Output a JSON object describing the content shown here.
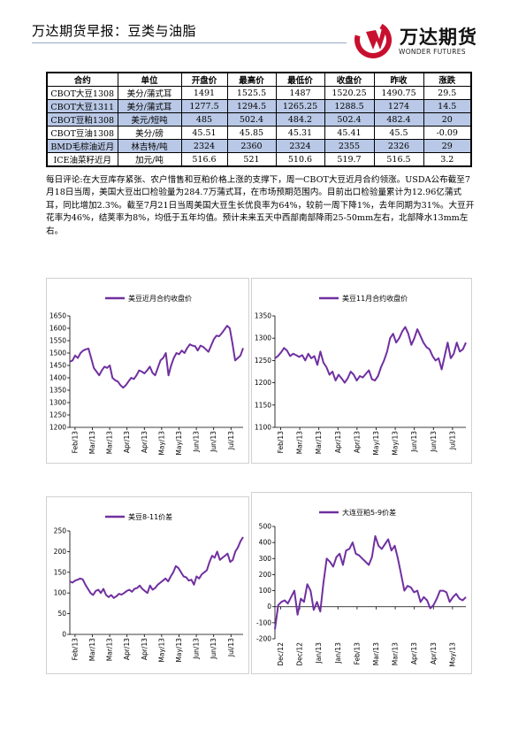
{
  "header": {
    "title": "万达期货早报：豆类与油脂",
    "logo_cn": "万达期货",
    "logo_en": "WONDER FUTURES"
  },
  "table": {
    "columns": [
      "合约",
      "单位",
      "开盘价",
      "最高价",
      "最低价",
      "收盘价",
      "昨收",
      "涨跌"
    ],
    "rows": [
      [
        "CBOT大豆1308",
        "美分/蒲式耳",
        "1491",
        "1525.5",
        "1487",
        "1520.25",
        "1490.75",
        "29.5"
      ],
      [
        "CBOT大豆1311",
        "美分/蒲式耳",
        "1277.5",
        "1294.5",
        "1265.25",
        "1288.5",
        "1274",
        "14.5"
      ],
      [
        "CBOT豆粕1308",
        "美元/短吨",
        "485",
        "502.4",
        "484.2",
        "502.4",
        "482.4",
        "20"
      ],
      [
        "CBOT豆油1308",
        "美分/磅",
        "45.51",
        "45.85",
        "45.31",
        "45.41",
        "45.5",
        "-0.09"
      ],
      [
        "BMD毛棕油近月",
        "林吉特/吨",
        "2324",
        "2360",
        "2324",
        "2355",
        "2326",
        "29"
      ],
      [
        "ICE油菜籽近月",
        "加元/吨",
        "516.6",
        "521",
        "510.6",
        "519.7",
        "516.5",
        "3.2"
      ]
    ],
    "highlight_rows": [
      1,
      2,
      4
    ]
  },
  "comment": "每日评论:在大豆库存紧张、农户惜售和豆粕价格上涨的支撑下，周一CBOT大豆近月合约领涨。USDA公布截至7月18日当周，美国大豆出口检验量为284.7万蒲式耳，在市场预期范围内。目前出口检验量累计为12.96亿蒲式耳，同比增加2.3%。截至7月21日当周美国大豆生长优良率为64%，较前一周下降1%，去年同期为31%。大豆开花率为46%，结荚率为8%，均低于五年均值。预计未来五天中西部南部降雨25-50mm左右，北部降水13mm左右。",
  "chart_data": [
    {
      "type": "line",
      "legend": "美豆近月合约收盘价",
      "color": "#7030a0",
      "ylim": [
        1200,
        1650
      ],
      "yticks": [
        1200,
        1250,
        1300,
        1350,
        1400,
        1450,
        1500,
        1550,
        1600,
        1650
      ],
      "xticks": [
        "Feb/13",
        "Mar/13",
        "Mar/13",
        "Apr/13",
        "Apr/13",
        "May/13",
        "May/13",
        "Jun/13",
        "Jun/13",
        "Jul/13"
      ],
      "values": [
        1465,
        1470,
        1490,
        1480,
        1500,
        1510,
        1515,
        1518,
        1480,
        1440,
        1425,
        1410,
        1430,
        1445,
        1440,
        1450,
        1400,
        1390,
        1385,
        1370,
        1360,
        1370,
        1385,
        1400,
        1395,
        1410,
        1430,
        1425,
        1418,
        1430,
        1445,
        1420,
        1410,
        1440,
        1470,
        1480,
        1500,
        1410,
        1450,
        1480,
        1500,
        1495,
        1510,
        1500,
        1520,
        1535,
        1530,
        1528,
        1510,
        1530,
        1525,
        1515,
        1505,
        1530,
        1555,
        1570,
        1568,
        1580,
        1595,
        1610,
        1600,
        1540,
        1470,
        1480,
        1490,
        1520
      ]
    },
    {
      "type": "line",
      "legend": "美豆11月合约收盘价",
      "color": "#7030a0",
      "ylim": [
        1100,
        1350
      ],
      "yticks": [
        1100,
        1150,
        1200,
        1250,
        1300,
        1350
      ],
      "xticks": [
        "Feb/13",
        "Mar/13",
        "Mar/13",
        "Apr/13",
        "Apr/13",
        "May/13",
        "May/13",
        "Jun/13",
        "Jun/13",
        "Jul/13"
      ],
      "values": [
        1255,
        1260,
        1268,
        1278,
        1272,
        1260,
        1265,
        1262,
        1258,
        1262,
        1250,
        1265,
        1255,
        1260,
        1240,
        1270,
        1245,
        1235,
        1218,
        1225,
        1205,
        1218,
        1210,
        1200,
        1210,
        1225,
        1218,
        1205,
        1215,
        1212,
        1220,
        1228,
        1208,
        1205,
        1215,
        1235,
        1250,
        1270,
        1300,
        1310,
        1290,
        1300,
        1315,
        1325,
        1310,
        1285,
        1300,
        1320,
        1305,
        1290,
        1280,
        1275,
        1260,
        1250,
        1255,
        1230,
        1260,
        1290,
        1255,
        1265,
        1290,
        1270,
        1275,
        1290
      ]
    },
    {
      "type": "line",
      "legend": "美豆8-11价差",
      "color": "#7030a0",
      "ylim": [
        0,
        250
      ],
      "yticks": [
        0,
        50,
        100,
        150,
        200,
        250
      ],
      "xticks": [
        "Feb/13",
        "Mar/13",
        "Mar/13",
        "Apr/13",
        "Apr/13",
        "May/13",
        "May/13",
        "Jun/13",
        "Jun/13",
        "Jul/13"
      ],
      "values": [
        128,
        125,
        130,
        132,
        135,
        133,
        120,
        110,
        100,
        95,
        105,
        108,
        100,
        110,
        95,
        90,
        95,
        88,
        92,
        98,
        96,
        100,
        105,
        108,
        103,
        110,
        112,
        118,
        110,
        105,
        100,
        118,
        108,
        112,
        120,
        125,
        130,
        135,
        128,
        140,
        150,
        165,
        160,
        150,
        140,
        138,
        130,
        132,
        120,
        140,
        135,
        145,
        150,
        155,
        175,
        190,
        185,
        200,
        180,
        185,
        190,
        195,
        175,
        180,
        200,
        210,
        225,
        235
      ]
    },
    {
      "type": "line",
      "legend": "大连豆粕5-9价差",
      "color": "#7030a0",
      "ylim": [
        -200,
        500
      ],
      "yticks": [
        -200,
        -100,
        0,
        100,
        200,
        300,
        400,
        500
      ],
      "xticks": [
        "Dec/12",
        "Dec/12",
        "Jan/13",
        "Jan/13",
        "Feb/13",
        "Mar/13",
        "Mar/13",
        "Apr/13",
        "Apr/13",
        "May/13"
      ],
      "values": [
        -140,
        10,
        30,
        40,
        20,
        60,
        100,
        -50,
        50,
        30,
        140,
        100,
        -20,
        30,
        -30,
        150,
        300,
        280,
        250,
        310,
        330,
        260,
        350,
        360,
        400,
        330,
        320,
        300,
        280,
        260,
        310,
        440,
        380,
        360,
        390,
        420,
        350,
        380,
        300,
        200,
        100,
        130,
        120,
        90,
        100,
        30,
        60,
        40,
        -10,
        10,
        50,
        100,
        100,
        90,
        30,
        60,
        80,
        50,
        40,
        60
      ]
    }
  ]
}
